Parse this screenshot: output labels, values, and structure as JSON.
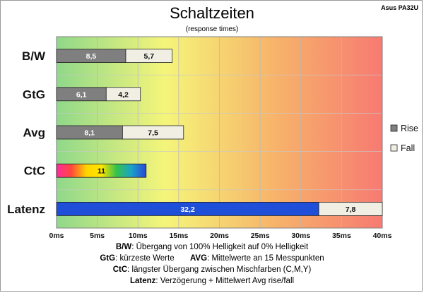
{
  "chart_data": {
    "type": "bar",
    "title": "Schaltzeiten",
    "subtitle": "(response times)",
    "corner_label": "Asus PA32U",
    "categories": [
      "B/W",
      "GtG",
      "Avg",
      "CtC",
      "Latenz"
    ],
    "series": [
      {
        "name": "Rise",
        "values": [
          8.5,
          6.1,
          8.1,
          null,
          32.2
        ],
        "labels": [
          "8,5",
          "6,1",
          "8,1",
          null,
          "32,2"
        ],
        "color": "#7f7f7f"
      },
      {
        "name": "Fall",
        "values": [
          5.7,
          4.2,
          7.5,
          null,
          7.8
        ],
        "labels": [
          "5,7",
          "4,2",
          "7,5",
          null,
          "7,8"
        ],
        "color": "#f1efe4"
      }
    ],
    "single_bars": [
      {
        "category": "CtC",
        "value": 11,
        "label": "11",
        "fill": "rainbow-gradient"
      },
      {
        "category": "Latenz",
        "segment": "Rise",
        "fill": "#1f4fd8"
      }
    ],
    "x_ticks": [
      "0ms",
      "5ms",
      "10ms",
      "15ms",
      "20ms",
      "25ms",
      "30ms",
      "35ms",
      "40ms"
    ],
    "xlim": [
      0,
      40
    ],
    "xlabel": "",
    "ylabel": "",
    "legend": {
      "placement": "right",
      "entries": [
        "Rise",
        "Fall"
      ]
    },
    "background_gradient": [
      "#8fd88a",
      "#f5f57a",
      "#f7b46a",
      "#f77a72"
    ]
  },
  "notes": [
    {
      "key": "B/W",
      "text": ":  Übergang von 100% Helligkeit auf 0% Helligkeit"
    },
    {
      "key": "GtG",
      "text": ": kürzeste  Werte",
      "key2": "AVG",
      "text2": ": Mittelwerte  an 15 Messpunkten"
    },
    {
      "key": "CtC",
      "text": ": längster Übergang  zwischen Mischfarben (C,M,Y)"
    },
    {
      "key": "Latenz",
      "text": ": Verzögerung  + Mittelwert Avg rise/fall"
    }
  ]
}
